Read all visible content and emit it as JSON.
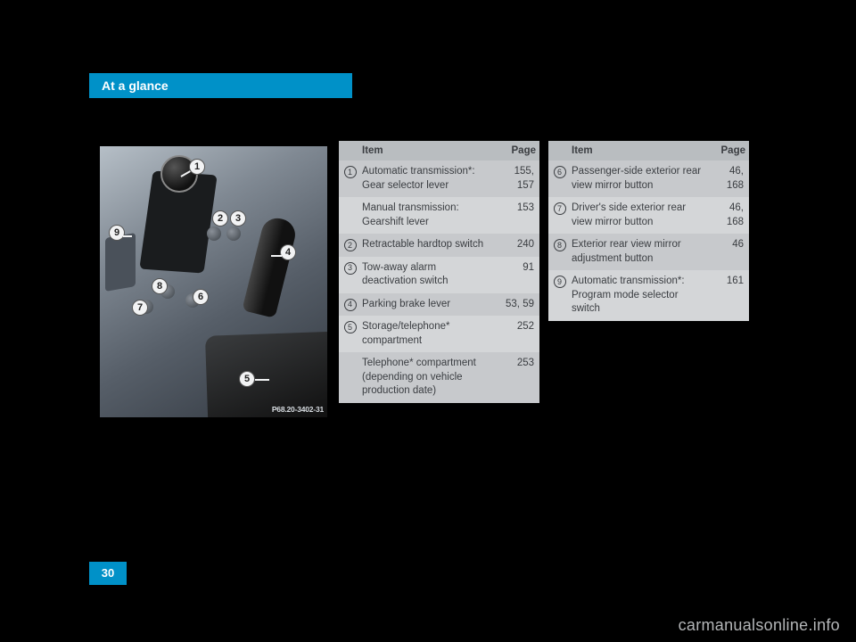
{
  "section_tab": "At a glance",
  "page_number": "30",
  "watermark": "carmanualsonline.info",
  "figure": {
    "code": "P68.20-3402-31",
    "callouts": [
      "1",
      "2",
      "3",
      "4",
      "5",
      "6",
      "7",
      "8",
      "9"
    ]
  },
  "tables": {
    "header": {
      "item": "Item",
      "page": "Page"
    },
    "left": [
      {
        "num": "1",
        "item": "Automatic transmission*:\nGear selector lever",
        "page": "155,\n157"
      },
      {
        "num": "",
        "item": "Manual transmission:\nGearshift lever",
        "page": "153"
      },
      {
        "num": "2",
        "item": "Retractable hardtop switch",
        "page": "240"
      },
      {
        "num": "3",
        "item": "Tow-away alarm\ndeactivation switch",
        "page": "91"
      },
      {
        "num": "4",
        "item": "Parking brake lever",
        "page": "53, 59"
      },
      {
        "num": "5",
        "item": "Storage/telephone*\ncompartment",
        "page": "252"
      },
      {
        "num": "",
        "item": "Telephone* compartment\n(depending on vehicle\nproduction date)",
        "page": "253"
      }
    ],
    "right": [
      {
        "num": "6",
        "item": "Passenger-side exterior rear\nview mirror button",
        "page": "46,\n168"
      },
      {
        "num": "7",
        "item": "Driver's side exterior rear\nview mirror button",
        "page": "46,\n168"
      },
      {
        "num": "8",
        "item": "Exterior rear view mirror\nadjustment button",
        "page": "46"
      },
      {
        "num": "9",
        "item": "Automatic transmission*:\nProgram mode selector\nswitch",
        "page": "161"
      }
    ]
  },
  "colors": {
    "accent": "#0091c8",
    "page_bg": "#000000",
    "table_header_bg": "#b9bdc0",
    "table_row_a": "#d4d6d8",
    "table_row_b": "#c7c9cc",
    "text": "#3a3d41"
  }
}
